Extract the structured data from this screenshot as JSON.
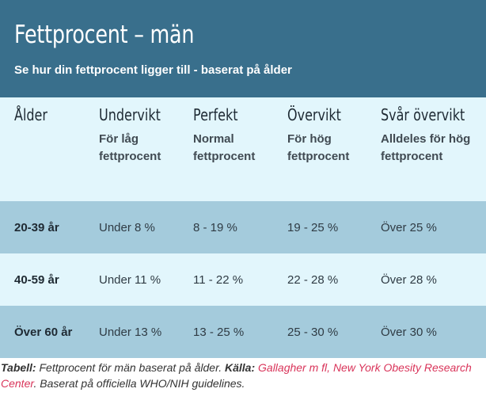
{
  "header": {
    "title": "Fettprocent – män",
    "subtitle": "Se hur din fettprocent ligger till - baserat på ålder"
  },
  "columns": [
    {
      "title": "Ålder",
      "sub": ""
    },
    {
      "title": "Undervikt",
      "sub": "För låg fettprocent"
    },
    {
      "title": "Perfekt",
      "sub": "Normal fettprocent"
    },
    {
      "title": "Övervikt",
      "sub": "För hög fettprocent"
    },
    {
      "title": "Svår övervikt",
      "sub": "Alldeles för hög fettprocent"
    }
  ],
  "rows": [
    [
      "20-39 år",
      "Under 8 %",
      "8 - 19 %",
      "19 - 25 %",
      "Över 25 %"
    ],
    [
      "40-59 år",
      "Under 11 %",
      "11 - 22 %",
      "22 - 28 %",
      "Över 28 %"
    ],
    [
      "Över 60 år",
      "Under 13 %",
      "13 - 25 %",
      "25 - 30 %",
      "Över 30 %"
    ]
  ],
  "caption": {
    "label": "Tabell:",
    "text": " Fettprocent för män baserat på ålder. ",
    "source_label": "Källa:",
    "source_link": " Gallagher m fl, New York Obesity Research Center",
    "tail": ". Baserat på officiella WHO/NIH guidelines."
  },
  "colors": {
    "header_bg": "#396f8c",
    "row_dark": "#a4cbdc",
    "row_light": "#e2f6fc",
    "link": "#d9345a"
  }
}
